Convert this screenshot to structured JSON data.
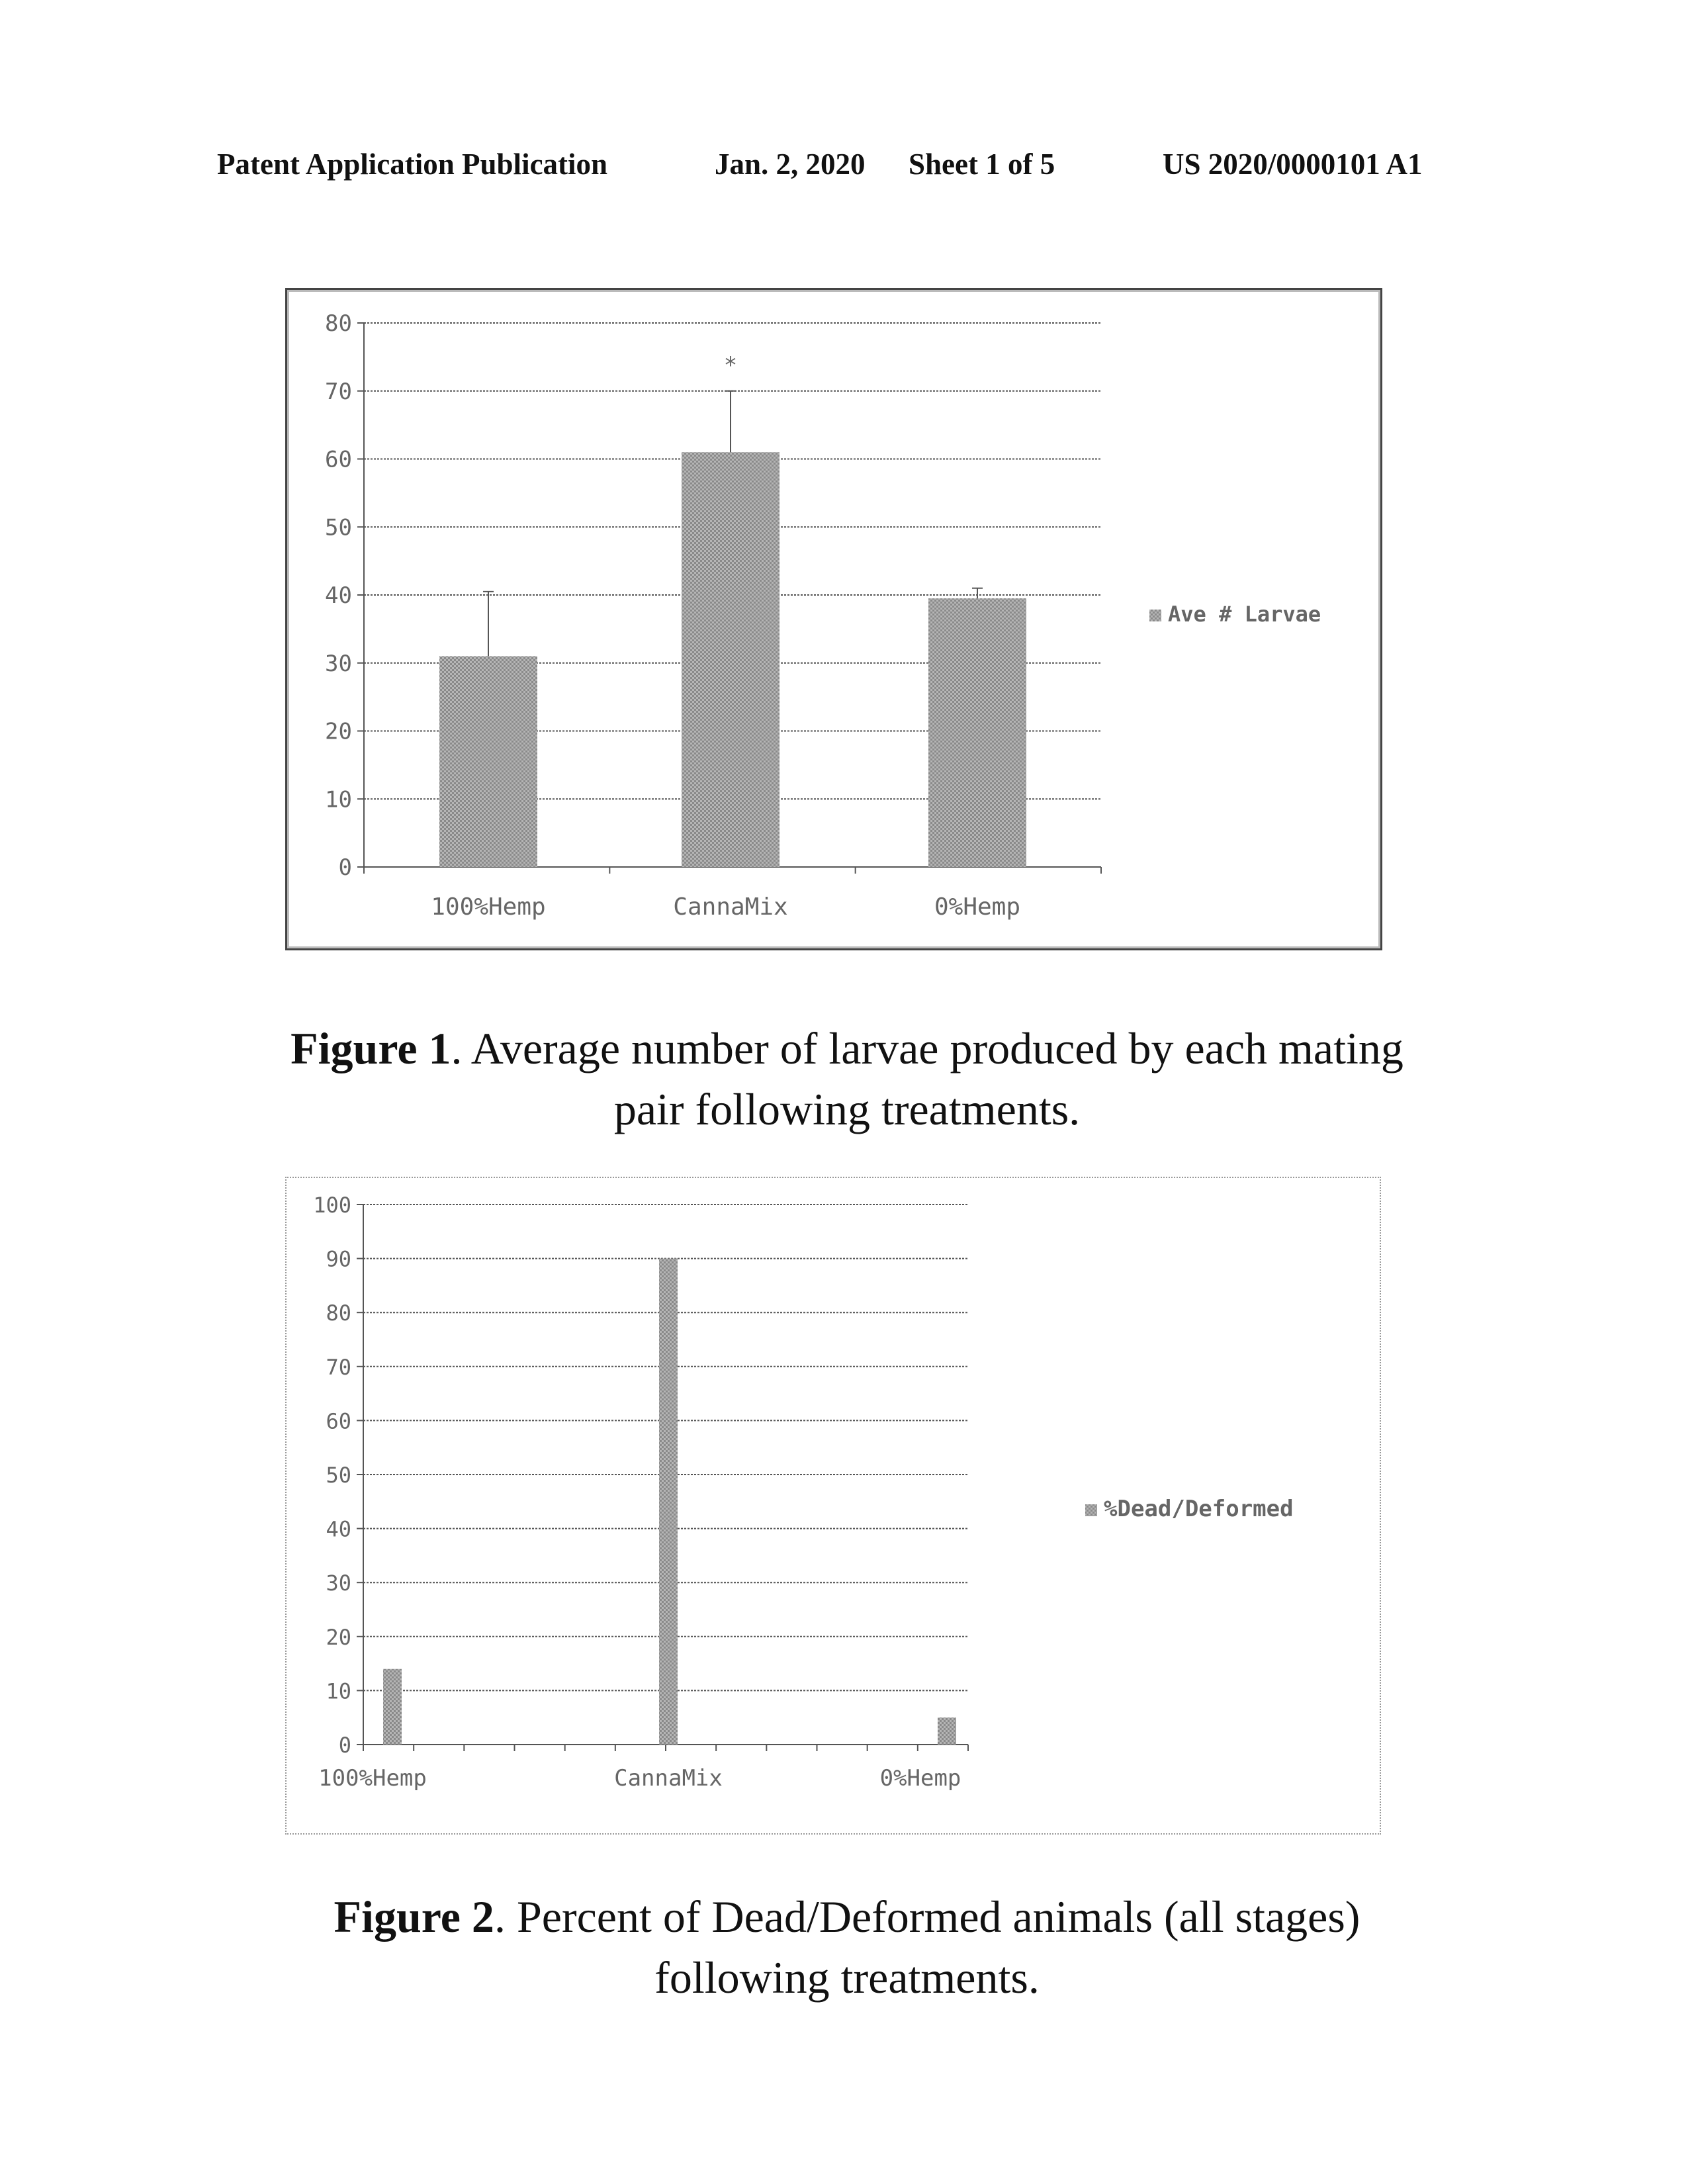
{
  "header": {
    "publication": "Patent Application Publication",
    "date": "Jan. 2, 2020",
    "sheet": "Sheet 1 of 5",
    "number": "US 2020/0000101 A1"
  },
  "figures": [
    {
      "label": "Figure 1",
      "text": ". Average number of larvae produced by each mating pair following treatments."
    },
    {
      "label": "Figure 2",
      "text": ". Percent of Dead/Deformed animals (all stages) following treatments."
    }
  ],
  "chart_data": [
    {
      "type": "bar",
      "categories": [
        "100%Hemp",
        "CannaMix",
        "0%Hemp"
      ],
      "series": [
        {
          "name": "Ave # Larvae",
          "values": [
            31,
            61,
            39.5
          ],
          "error": [
            9.5,
            9,
            1.5
          ]
        }
      ],
      "annotations": [
        {
          "category": "CannaMix",
          "text": "*"
        }
      ],
      "yticks": [
        "0",
        "10",
        "20",
        "30",
        "40",
        "50",
        "60",
        "70",
        "80"
      ],
      "ylim": [
        0,
        80
      ],
      "grid": true,
      "legend": "right",
      "colors": {
        "bar": "#9a9a9a",
        "grid": "#555555",
        "text": "#666666"
      }
    },
    {
      "type": "bar",
      "categories": [
        "100%Hemp",
        "CannaMix",
        "0%Hemp"
      ],
      "series": [
        {
          "name": "%Dead/Deformed",
          "values": [
            14,
            90,
            5
          ]
        }
      ],
      "yticks": [
        "0",
        "10",
        "20",
        "30",
        "40",
        "50",
        "60",
        "70",
        "80",
        "90",
        "100"
      ],
      "ylim": [
        0,
        100
      ],
      "grid": true,
      "legend": "right",
      "colors": {
        "bar": "#9a9a9a",
        "grid": "#555555",
        "text": "#666666"
      }
    }
  ]
}
